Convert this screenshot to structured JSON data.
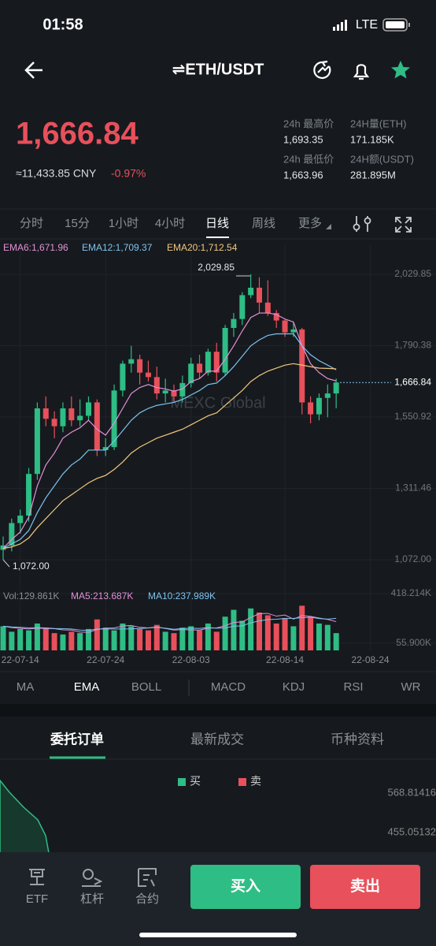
{
  "status": {
    "time": "01:58",
    "network": "LTE"
  },
  "header": {
    "title": "⇌ETH/USDT"
  },
  "ticker": {
    "price": "1,666.84",
    "cny": "≈11,433.85 CNY",
    "change": "-0.97%",
    "stats": [
      [
        "24h 最高价",
        "1,693.35"
      ],
      [
        "24H量(ETH)",
        "171.185K"
      ],
      [
        "24h 最低价",
        "1,663.96"
      ],
      [
        "24H额(USDT)",
        "281.895M"
      ]
    ]
  },
  "periods": [
    "分时",
    "15分",
    "1小时",
    "4小时",
    "日线",
    "周线",
    "更多"
  ],
  "chart_data": {
    "type": "candlestick",
    "watermark": "MEXC Global",
    "categories": [
      null,
      null,
      "22-07-14",
      null,
      null,
      null,
      null,
      null,
      null,
      null,
      null,
      null,
      "22-07-24",
      null,
      null,
      null,
      null,
      null,
      null,
      null,
      null,
      null,
      "22-08-03",
      null,
      null,
      null,
      null,
      null,
      null,
      null,
      null,
      null,
      null,
      "22-08-14",
      null,
      null,
      null,
      null,
      null,
      null,
      null,
      null,
      null,
      "22-08-24"
    ],
    "open": [
      1105,
      1120,
      1195,
      1220,
      1360,
      1580,
      1545,
      1520,
      1580,
      1540,
      1555,
      1600,
      1440,
      1450,
      1640,
      1730,
      1745,
      1700,
      1685,
      1630,
      1640,
      1620,
      1665,
      1730,
      1700,
      1770,
      1700,
      1850,
      1880,
      1960,
      1985,
      1935,
      1900,
      1875,
      1835,
      1845,
      1600,
      1560,
      1615,
      1630,
      null,
      null,
      null,
      null
    ],
    "high": [
      1150,
      1210,
      1240,
      1380,
      1600,
      1620,
      1570,
      1600,
      1620,
      1610,
      1620,
      1610,
      1480,
      1660,
      1740,
      1790,
      1760,
      1740,
      1720,
      1680,
      1660,
      1690,
      1750,
      1760,
      1780,
      1800,
      1860,
      1900,
      1970,
      2029.85,
      2020,
      2010,
      1910,
      1880,
      1870,
      1850,
      1620,
      1630,
      1660,
      1680,
      null,
      null,
      null,
      null
    ],
    "low": [
      1072,
      1100,
      1160,
      1200,
      1340,
      1520,
      1480,
      1500,
      1520,
      1520,
      1540,
      1420,
      1420,
      1440,
      1620,
      1700,
      1660,
      1670,
      1610,
      1600,
      1600,
      1600,
      1650,
      1680,
      1690,
      1670,
      1690,
      1820,
      1860,
      1950,
      1900,
      1890,
      1850,
      1820,
      1820,
      1560,
      1530,
      1540,
      1550,
      1580,
      null,
      null,
      null,
      null
    ],
    "close": [
      1120,
      1195,
      1220,
      1360,
      1580,
      1545,
      1520,
      1580,
      1540,
      1555,
      1600,
      1440,
      1450,
      1640,
      1730,
      1745,
      1700,
      1685,
      1630,
      1640,
      1620,
      1665,
      1730,
      1700,
      1770,
      1700,
      1850,
      1880,
      1960,
      1985,
      1935,
      1900,
      1875,
      1835,
      1845,
      1600,
      1560,
      1615,
      1630,
      1666.84,
      null,
      null,
      null,
      null
    ],
    "up_color": "#2ebd85",
    "down_color": "#e8505b",
    "price_labels": [
      {
        "value": 2029.85,
        "label": "2,029.85"
      },
      {
        "value": 1072,
        "label": "1,072.00"
      },
      {
        "value": 1666.84,
        "label": "1,666.84"
      }
    ],
    "series": [
      {
        "name": "EMA6:1,671.96",
        "color": "#e58fd8",
        "values": [
          1110,
          1140,
          1165,
          1215,
          1320,
          1390,
          1430,
          1480,
          1500,
          1515,
          1540,
          1510,
          1490,
          1530,
          1580,
          1630,
          1650,
          1660,
          1650,
          1645,
          1638,
          1645,
          1670,
          1680,
          1705,
          1705,
          1745,
          1790,
          1840,
          1885,
          1900,
          1900,
          1895,
          1880,
          1870,
          1790,
          1730,
          1700,
          1680,
          1671.96,
          null,
          null,
          null,
          null
        ]
      },
      {
        "name": "EMA12:1,709.37",
        "color": "#7ec3f0",
        "values": [
          1110,
          1125,
          1140,
          1170,
          1230,
          1280,
          1320,
          1360,
          1390,
          1410,
          1440,
          1440,
          1440,
          1470,
          1505,
          1540,
          1565,
          1580,
          1590,
          1595,
          1600,
          1610,
          1625,
          1640,
          1660,
          1665,
          1690,
          1720,
          1755,
          1790,
          1810,
          1825,
          1830,
          1830,
          1830,
          1790,
          1760,
          1740,
          1725,
          1709.37,
          null,
          null,
          null,
          null
        ]
      },
      {
        "name": "EMA20:1,712.54",
        "color": "#f4c77d",
        "values": [
          1110,
          1115,
          1125,
          1145,
          1180,
          1210,
          1240,
          1270,
          1290,
          1310,
          1330,
          1345,
          1355,
          1375,
          1400,
          1430,
          1450,
          1465,
          1480,
          1490,
          1500,
          1510,
          1525,
          1540,
          1555,
          1565,
          1590,
          1615,
          1640,
          1670,
          1690,
          1705,
          1715,
          1725,
          1730,
          1725,
          1720,
          1715,
          1714,
          1712.54,
          null,
          null,
          null,
          null
        ]
      }
    ],
    "ylim": [
      979.4,
      2130.4
    ],
    "yticks": [
      {
        "value": 1072,
        "label": "1,072.00"
      },
      {
        "value": 1311.46,
        "label": "1,311.46"
      },
      {
        "value": 1550.92,
        "label": "1,550.92"
      },
      {
        "value": 1790.38,
        "label": "1,790.38"
      },
      {
        "value": 2029.85,
        "label": "2,029.85"
      }
    ],
    "volume": {
      "name": "Vol:129.861K",
      "values": [
        180,
        140,
        160,
        150,
        200,
        170,
        130,
        120,
        140,
        130,
        160,
        230,
        170,
        150,
        200,
        180,
        160,
        150,
        190,
        140,
        130,
        170,
        180,
        150,
        200,
        140,
        250,
        300,
        220,
        310,
        280,
        260,
        200,
        240,
        180,
        330,
        250,
        200,
        190,
        129.861,
        null,
        null,
        null,
        null
      ],
      "series": [
        {
          "name": "MA5:213.687K",
          "color": "#e58fd8",
          "values": [
            180,
            170,
            165,
            160,
            166,
            164,
            162,
            154,
            152,
            138,
            136,
            156,
            166,
            168,
            182,
            186,
            172,
            168,
            176,
            164,
            152,
            156,
            154,
            152,
            166,
            168,
            184,
            208,
            212,
            244,
            272,
            274,
            254,
            262,
            232,
            258,
            252,
            240,
            230,
            213.687,
            null,
            null,
            null,
            null
          ]
        },
        {
          "name": "MA10:237.989K",
          "color": "#7ec3f0",
          "values": [
            180,
            175,
            172,
            168,
            170,
            168,
            164,
            162,
            160,
            152,
            150,
            160,
            160,
            160,
            160,
            161,
            164,
            167,
            172,
            166,
            158,
            164,
            166,
            164,
            171,
            166,
            168,
            180,
            183,
            205,
            219,
            229,
            231,
            237,
            238,
            242,
            246,
            236,
            232,
            237.989,
            null,
            null,
            null,
            null
          ]
        }
      ],
      "ylim": [
        4.15,
        464.2
      ],
      "yticks": [
        {
          "value": 55.9,
          "label": "55.900K"
        },
        {
          "value": 418.214,
          "label": "418.214K"
        }
      ]
    }
  },
  "indicators": [
    "MA",
    "EMA",
    "BOLL",
    "MACD",
    "KDJ",
    "RSI",
    "WR"
  ],
  "order_tabs": [
    "委托订单",
    "最新成交",
    "币种资料"
  ],
  "depth": {
    "buy": "买",
    "sell": "卖",
    "levels": [
      "568.81416",
      "455.05132"
    ]
  },
  "bottom": {
    "nav": [
      "ETF",
      "杠杆",
      "合约"
    ],
    "buy": "买入",
    "sell": "卖出"
  }
}
